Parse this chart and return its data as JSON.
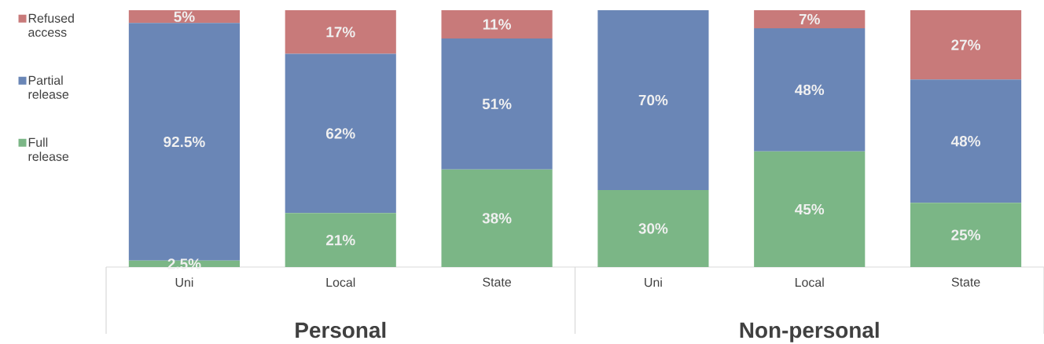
{
  "chart_data": {
    "type": "bar",
    "stacked": true,
    "legend": "left",
    "categories": [
      "Uni",
      "Local",
      "State",
      "Uni",
      "Local",
      "State"
    ],
    "series": [
      {
        "name": "Full release",
        "color": "#7bb686",
        "values": [
          2.5,
          21,
          38,
          30,
          45,
          25
        ],
        "value_labels": [
          "2.5%",
          "21%",
          "38%",
          "30%",
          "45%",
          "25%"
        ]
      },
      {
        "name": "Partial release",
        "color": "#6a86b6",
        "values": [
          92.5,
          62,
          51,
          70,
          48,
          48
        ],
        "value_labels": [
          "92.5%",
          "62%",
          "51%",
          "70%",
          "48%",
          "48%"
        ]
      },
      {
        "name": "Refused access",
        "color": "#c87a7a",
        "values": [
          5,
          17,
          11,
          0,
          7,
          27
        ],
        "value_labels": [
          "5%",
          "17%",
          "11%",
          null,
          "7%",
          "27%"
        ]
      }
    ],
    "annotations": [
      "Personal",
      "Non-personal"
    ]
  }
}
